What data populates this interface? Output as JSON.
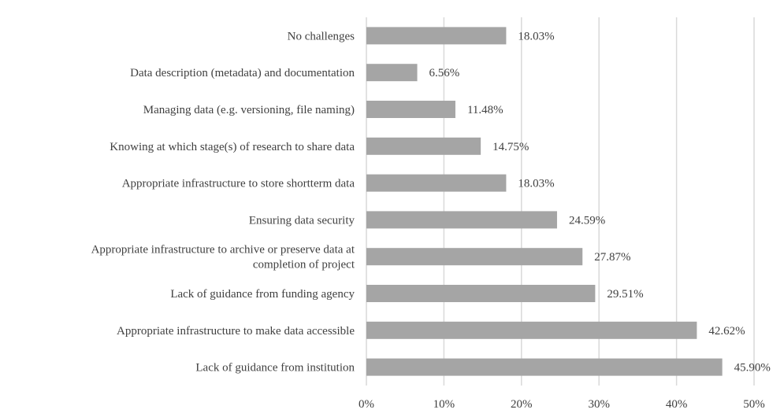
{
  "chart_data": {
    "type": "bar",
    "orientation": "horizontal",
    "categories": [
      "No challenges",
      "Data description (metadata) and documentation",
      "Managing data (e.g. versioning, file naming)",
      "Knowing at which stage(s) of research to share data",
      "Appropriate infrastructure to store shortterm data",
      "Ensuring data security",
      "Appropriate infrastructure to archive or preserve data at|completion of project",
      "Lack of guidance from funding agency",
      "Appropriate infrastructure to make data accessible",
      "Lack of guidance from institution"
    ],
    "values": [
      18.03,
      6.56,
      11.48,
      14.75,
      18.03,
      24.59,
      27.87,
      29.51,
      42.62,
      45.9
    ],
    "data_labels": [
      "18.03%",
      "6.56%",
      "11.48%",
      "14.75%",
      "18.03%",
      "24.59%",
      "27.87%",
      "29.51%",
      "42.62%",
      "45.90%"
    ],
    "x_ticks": [
      "0%",
      "10%",
      "20%",
      "30%",
      "40%",
      "50%"
    ],
    "xlim": [
      0,
      50
    ],
    "grid": "vertical",
    "bar_color": "#a5a5a5",
    "grid_color": "#d9d9d9"
  }
}
